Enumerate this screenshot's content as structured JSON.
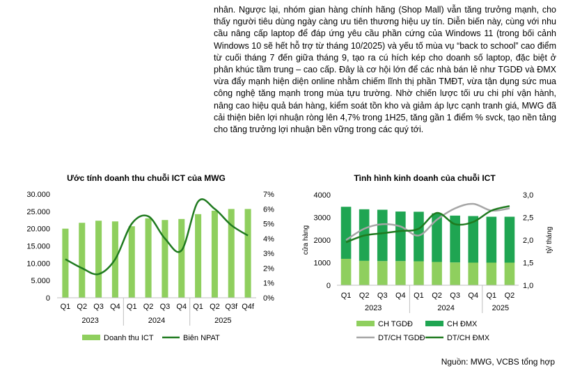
{
  "paragraph": "nhân. Ngược lại, nhóm gian hàng chính hãng (Shop Mall) vẫn tăng trưởng mạnh, cho thấy người tiêu dùng ngày càng ưu tiên thương hiệu uy tín. Diễn biến này, cùng với nhu cầu nâng cấp laptop để đáp ứng yêu cầu phần cứng của Windows 11 (trong bối cảnh Windows 10 sẽ hết hỗ trợ từ tháng 10/2025) và yếu tố mùa vụ “back to school” cao điểm từ cuối tháng 7 đến giữa tháng 9, tạo ra cú hích kép cho doanh số laptop, đặc biệt ở phân khúc tầm trung – cao cấp. Đây là cơ hội lớn để các nhà bán lẻ như TGDĐ và ĐMX vừa đẩy mạnh hiện diện online nhằm chiếm lĩnh thị phần TMĐT, vừa tận dụng sức mua công nghệ tăng mạnh trong mùa tựu trường. Nhờ chiến lược tối ưu chi phí vận hành, nâng cao hiệu quả bán hàng, kiểm soát tồn kho và giảm áp lực cạnh tranh giá, MWG đã cải thiện biên lợi nhuận ròng lên 4,7% trong 1H25, tăng gần 1 điểm % svck, tạo nền tảng cho tăng trưởng lợi nhuận bền vững trong các quý tới.",
  "source": "Nguồn: MWG, VCBS tổng hợp",
  "colors": {
    "bar_light": "#8fcf5e",
    "bar_dark": "#1fa552",
    "line_dark": "#1f7a1f",
    "line_grey": "#a6a6a6"
  },
  "chart_data": [
    {
      "type": "bar",
      "title": "Ước tính doanh thu chuỗi ICT của MWG",
      "categories": [
        "Q1",
        "Q2",
        "Q3",
        "Q4",
        "Q1",
        "Q2",
        "Q3",
        "Q4",
        "Q1",
        "Q2",
        "Q3f",
        "Q4f"
      ],
      "years": [
        {
          "label": "2023",
          "span": 4
        },
        {
          "label": "2024",
          "span": 4
        },
        {
          "label": "2025",
          "span": 4
        }
      ],
      "series": [
        {
          "name": "Doanh thu ICT",
          "type": "bar",
          "axis": "left",
          "values": [
            20000,
            21700,
            22300,
            22100,
            20700,
            23000,
            22500,
            22800,
            24200,
            25200,
            25700,
            25700
          ]
        },
        {
          "name": "Biên NPAT",
          "type": "line",
          "axis": "right",
          "values": [
            2.6,
            2.0,
            1.6,
            2.6,
            5.0,
            5.5,
            4.0,
            3.2,
            6.5,
            6.0,
            4.9,
            4.2
          ]
        }
      ],
      "yticks_left": [
        "0",
        "5.000",
        "10.000",
        "15.000",
        "20.000",
        "25.000",
        "30.000"
      ],
      "ylim_left": [
        0,
        30000
      ],
      "yticks_right": [
        "0%",
        "1%",
        "2%",
        "3%",
        "4%",
        "5%",
        "6%",
        "7%"
      ],
      "ylim_right": [
        0,
        7
      ],
      "legend": "bottom"
    },
    {
      "type": "bar",
      "title": "Tình hình kinh doanh của chuỗi ICT",
      "categories": [
        "Q1",
        "Q2",
        "Q3",
        "Q4",
        "Q1",
        "Q2",
        "Q3",
        "Q4",
        "Q1",
        "Q2"
      ],
      "years": [
        {
          "label": "2023",
          "span": 4
        },
        {
          "label": "2024",
          "span": 4
        },
        {
          "label": "2025",
          "span": 2
        }
      ],
      "ylabel": "cửa hàng",
      "ylabel_right": "tỷ/ tháng",
      "series": [
        {
          "name": "CH TGDĐ",
          "type": "stacked-bar",
          "axis": "left",
          "values": [
            1170,
            1080,
            1070,
            1070,
            1060,
            1030,
            1010,
            1000,
            1000,
            1000
          ]
        },
        {
          "name": "CH ĐMX",
          "type": "stacked-bar",
          "axis": "left",
          "values": [
            2300,
            2280,
            2270,
            2190,
            2190,
            2150,
            2070,
            2060,
            2030,
            2030
          ]
        },
        {
          "name": "DT/CH TGDĐ",
          "type": "line",
          "axis": "right",
          "values": [
            2.0,
            2.25,
            2.35,
            2.3,
            2.1,
            2.45,
            2.7,
            2.8,
            2.65,
            2.7
          ]
        },
        {
          "name": "DT/CH ĐMX",
          "type": "line",
          "axis": "right",
          "values": [
            1.95,
            2.1,
            2.15,
            2.2,
            2.25,
            2.6,
            2.35,
            2.4,
            2.65,
            2.75
          ]
        }
      ],
      "yticks_left": [
        "0",
        "1000",
        "2000",
        "3000",
        "4000"
      ],
      "ylim_left": [
        0,
        4000
      ],
      "yticks_right": [
        "1,0",
        "1,5",
        "2,0",
        "2,5",
        "3,0"
      ],
      "ylim_right": [
        1.0,
        3.0
      ],
      "legend": "bottom"
    }
  ]
}
